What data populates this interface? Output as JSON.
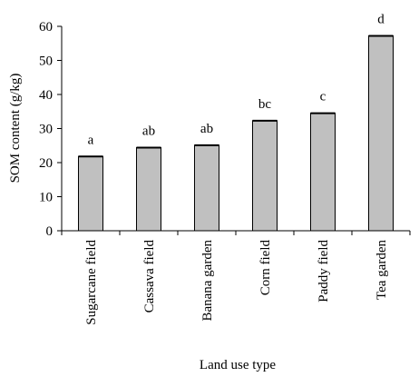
{
  "chart_data": {
    "type": "bar",
    "xlabel": "Land use type",
    "ylabel": "SOM content (g/kg)",
    "ylim": [
      0,
      60
    ],
    "yticks": [
      "0",
      "10",
      "20",
      "30",
      "40",
      "50",
      "60"
    ],
    "categories": [
      "Sugarcane field",
      "Cassava field",
      "Banana garden",
      "Corn field",
      "Paddy field",
      "Tea garden"
    ],
    "values": [
      21.8,
      24.4,
      25.1,
      32.3,
      34.5,
      57.2
    ],
    "significance_labels": [
      "a",
      "ab",
      "ab",
      "bc",
      "c",
      "d"
    ],
    "bar_color": "#c0c0c0",
    "bar_edge_color": "#000000",
    "grid": false
  }
}
